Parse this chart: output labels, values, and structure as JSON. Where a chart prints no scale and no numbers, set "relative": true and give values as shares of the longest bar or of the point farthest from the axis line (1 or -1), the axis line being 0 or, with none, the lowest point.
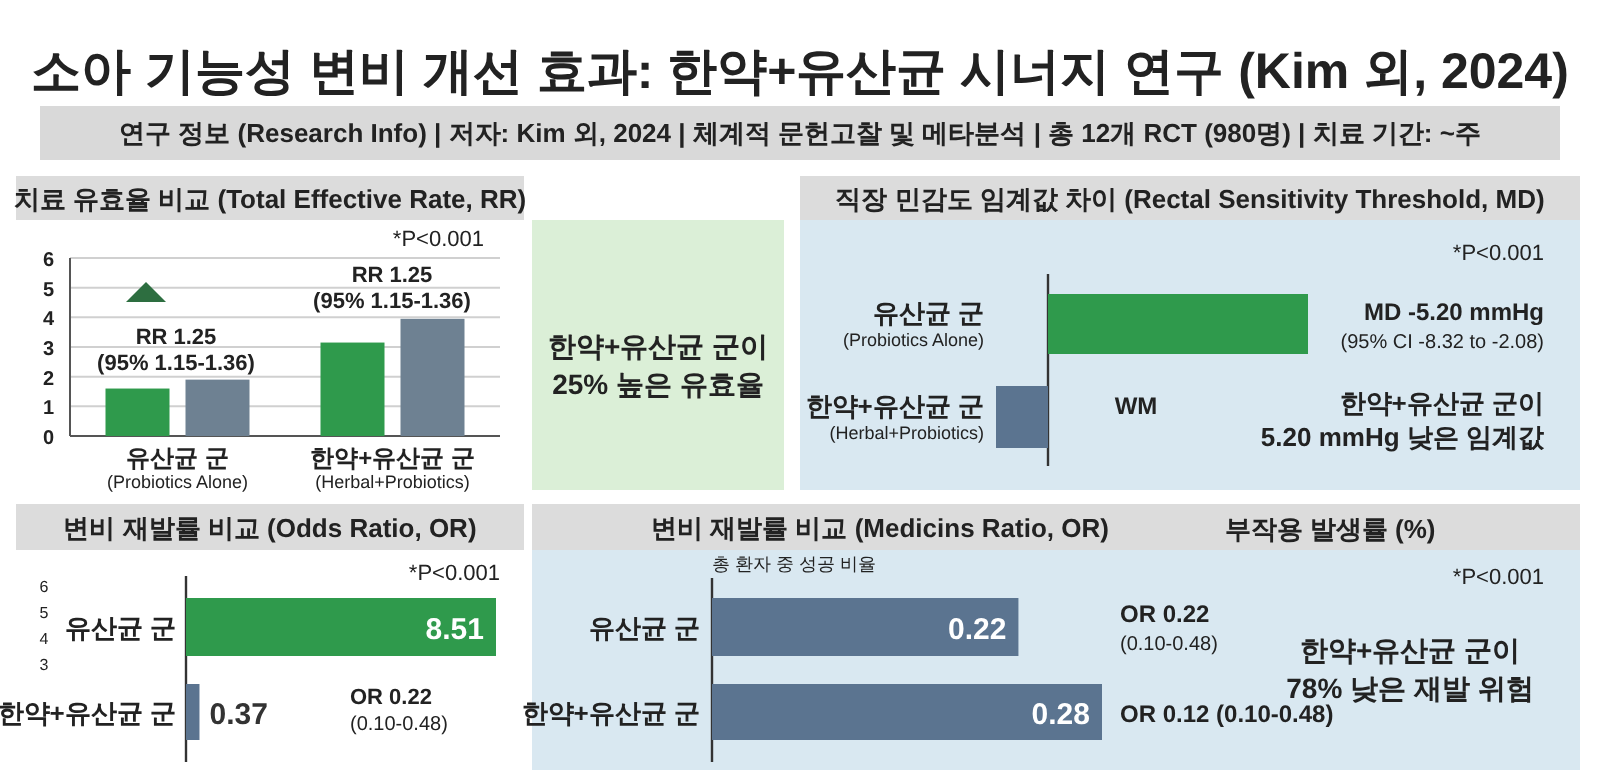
{
  "chart_data": [
    {
      "type": "other",
      "title": "소아 기능성 변비 개선 효과: 한약+유산균 시너지 연구 (Kim 외, 2024)",
      "subtitle": "연구 정보 (Research Info) | 저자: Kim 외, 2024 | 체계적 문헌고찰 및 메타분석 | 총 12개 RCT (980명) | 치료 기간: ~주"
    },
    {
      "type": "bar",
      "title": "치료 유효율 비교 (Total Effective Rate, RR)",
      "categories": [
        "유산균 군\n(Probiotics Alone)",
        "한약+유산균 군\n(Herbal+Probiotics)"
      ],
      "series": [
        {
          "color": "#2f9a4c",
          "values": [
            1.6,
            3.15
          ]
        },
        {
          "color": "#6e8192",
          "values": [
            1.9,
            3.95
          ]
        }
      ],
      "ylim": [
        0,
        6
      ],
      "yticks": [
        0,
        1,
        2,
        3,
        4,
        5,
        6
      ],
      "grid": "y",
      "annotations": [
        "*P<0.001",
        "RR 1.25\n(95% 1.15-1.36)",
        "RR 1.25\n(95%  1.15-1.36)"
      ]
    },
    {
      "type": "other",
      "annotations": [
        "한약+유산균 군이\n25% 높은 유효율"
      ]
    },
    {
      "type": "bar",
      "orientation": "horizontal",
      "relative": true,
      "title": "직장 민감도 임계값 차이 (Rectal Sensitivity Threshold, MD)",
      "categories": [
        "유산균 군\n(Probiotics Alone)",
        "한약+유산균 군\n(Herbal+Probiotics)"
      ],
      "values": [
        1,
        -0.2
      ],
      "colors": [
        "#2f9a4c",
        "#5b7490"
      ],
      "annotations": [
        "*P<0.001",
        "MD -5.20 mmHg\n(95% CI -8.32 to -2.08)",
        "WM",
        "한약+유산균 군이\n5.20 mmHg 낮은 임계값"
      ]
    },
    {
      "type": "bar",
      "orientation": "horizontal",
      "title": "변비 재발률 비교 (Odds Ratio, OR)",
      "categories": [
        "유산균 군",
        "한약+유산균 군"
      ],
      "values": [
        8.51,
        0.37
      ],
      "colors": [
        "#2f9a4c",
        "#5b7490"
      ],
      "data_labels": true,
      "annotations": [
        "*P<0.001",
        "OR 0.22\n(0.10-0.48)",
        "6",
        "5",
        "4",
        "3"
      ]
    },
    {
      "type": "bar",
      "orientation": "horizontal",
      "title": "변비 재발률 비교 (Medicins Ratio, OR)",
      "subtitle": "총 환자 중 성공 비율",
      "categories": [
        "유산균 군",
        "한약+유산균 군"
      ],
      "values": [
        0.22,
        0.28
      ],
      "colors": [
        "#5b7490",
        "#5b7490"
      ],
      "data_labels": true,
      "annotations": [
        "부작용 발생률 (%)",
        "OR 0.22\n(0.10-0.48)",
        "OR 0.12 (0.10-0.48)",
        "*P<0.001",
        "한약+유산균 군이\n78% 낮은 재발 위험"
      ]
    }
  ]
}
